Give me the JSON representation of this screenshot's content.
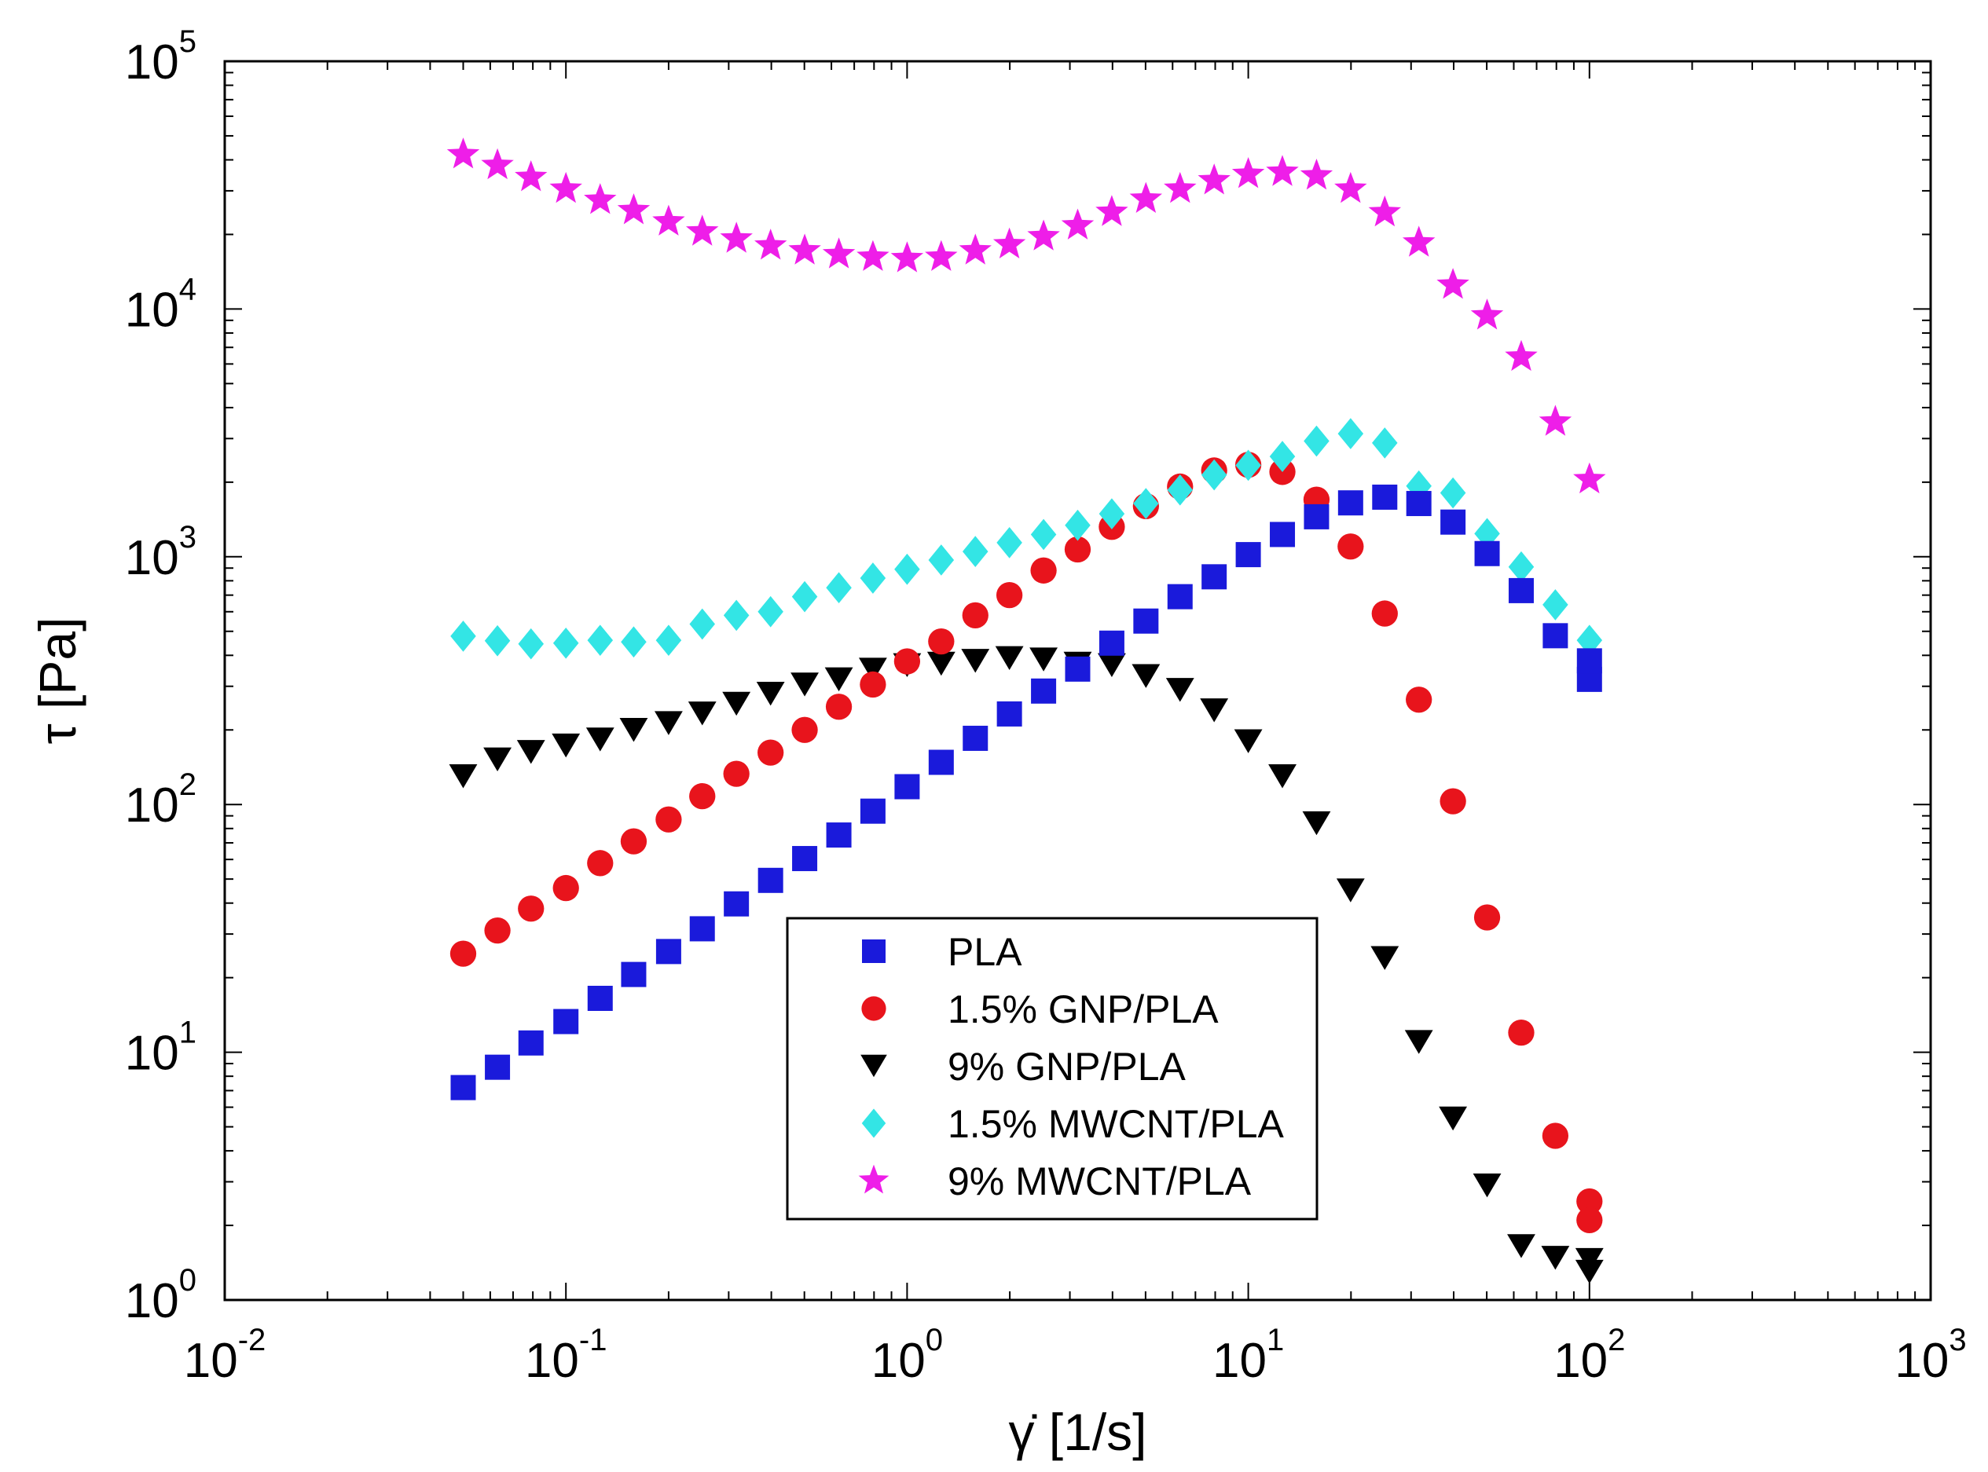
{
  "chart_data": {
    "type": "scatter",
    "xlabel": "γ̇ [1/s]",
    "ylabel": "τ [Pa]",
    "x_scale": "log",
    "y_scale": "log",
    "xlim": [
      0.01,
      1000
    ],
    "ylim": [
      1,
      100000
    ],
    "grid": false,
    "legend_position": "bottom-center",
    "x_tick_labels": [
      {
        "base": "10",
        "exp": "-2"
      },
      {
        "base": "10",
        "exp": "-1"
      },
      {
        "base": "10",
        "exp": "0"
      },
      {
        "base": "10",
        "exp": "1"
      },
      {
        "base": "10",
        "exp": "2"
      },
      {
        "base": "10",
        "exp": "3"
      }
    ],
    "y_tick_labels": [
      {
        "base": "10",
        "exp": "0"
      },
      {
        "base": "10",
        "exp": "1"
      },
      {
        "base": "10",
        "exp": "2"
      },
      {
        "base": "10",
        "exp": "3"
      },
      {
        "base": "10",
        "exp": "4"
      },
      {
        "base": "10",
        "exp": "5"
      }
    ],
    "x": [
      0.05,
      0.063,
      0.079,
      0.1,
      0.126,
      0.158,
      0.2,
      0.251,
      0.316,
      0.398,
      0.501,
      0.631,
      0.794,
      1.0,
      1.259,
      1.585,
      1.995,
      2.512,
      3.162,
      3.981,
      5.012,
      6.31,
      7.943,
      10.0,
      12.59,
      15.85,
      19.95,
      25.12,
      31.62,
      39.81,
      50.12,
      63.1,
      79.43,
      100.0
    ],
    "series": [
      {
        "name": "PLA",
        "marker": "square",
        "color": "#1a1adb",
        "values": [
          7.2,
          8.7,
          10.9,
          13.3,
          16.5,
          20.6,
          25.5,
          31.5,
          39.7,
          49.4,
          60.5,
          75.3,
          94.0,
          118,
          148,
          185,
          232,
          287,
          352,
          448,
          550,
          690,
          830,
          1020,
          1230,
          1450,
          1650,
          1740,
          1640,
          1380,
          1030,
          730,
          480,
          320
        ]
      },
      {
        "name": "1.5% GNP/PLA",
        "marker": "circle",
        "color": "#e8141c",
        "values": [
          25,
          31,
          38,
          46,
          58,
          71,
          87,
          108,
          133,
          162,
          200,
          248,
          305,
          378,
          455,
          580,
          700,
          880,
          1070,
          1320,
          1600,
          1920,
          2230,
          2350,
          2200,
          1700,
          1100,
          590,
          265,
          103,
          35,
          12,
          4.6,
          2.5
        ]
      },
      {
        "name": "9% GNP/PLA",
        "marker": "triangle-down",
        "color": "#000000",
        "values": [
          130,
          152,
          163,
          173,
          183,
          200,
          213,
          233,
          255,
          280,
          305,
          320,
          350,
          365,
          370,
          380,
          390,
          385,
          370,
          365,
          330,
          290,
          240,
          180,
          130,
          84,
          45,
          24,
          11,
          5.4,
          2.9,
          1.65,
          1.48,
          1.45
        ]
      },
      {
        "name": "1.5% MWCNT/PLA",
        "marker": "diamond",
        "color": "#33e5e5",
        "values": [
          478,
          458,
          445,
          448,
          460,
          453,
          460,
          535,
          580,
          600,
          690,
          750,
          820,
          890,
          970,
          1050,
          1140,
          1230,
          1340,
          1490,
          1640,
          1860,
          2140,
          2340,
          2540,
          2930,
          3140,
          2880,
          1930,
          1810,
          1240,
          910,
          640,
          460
        ]
      },
      {
        "name": "9% MWCNT/PLA",
        "marker": "star",
        "color": "#ee1ee8",
        "values": [
          42000,
          38000,
          34000,
          30500,
          27500,
          25000,
          22500,
          20500,
          19200,
          18000,
          17200,
          16600,
          16200,
          16000,
          16200,
          17200,
          18200,
          19600,
          21700,
          24600,
          27800,
          30500,
          33000,
          35000,
          35700,
          34500,
          30500,
          24500,
          18500,
          12500,
          9400,
          6400,
          3500,
          2050
        ]
      }
    ],
    "extra_points": [
      {
        "series": "PLA",
        "x": 100.0,
        "y": 380
      },
      {
        "series": "1.5% GNP/PLA",
        "x": 100.0,
        "y": 2.1
      },
      {
        "series": "9% GNP/PLA",
        "x": 100.0,
        "y": 1.3
      }
    ]
  }
}
